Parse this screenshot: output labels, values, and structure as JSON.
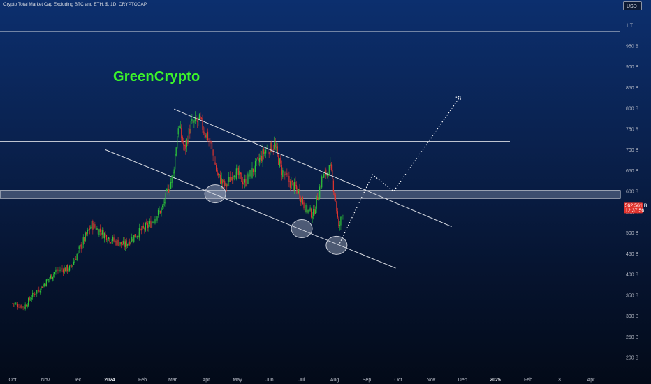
{
  "header": {
    "title": "Crypto Total Market Cap Excluding BTC and ETH, $, 1D, CRYPTOCAP",
    "currency": "USD",
    "watermark": "GreenCrypto"
  },
  "chart_data": {
    "type": "candlestick",
    "title": "Crypto Total Market Cap Excluding BTC and ETH, $, 1D, CRYPTOCAP",
    "ylabel": "",
    "xlabel": "",
    "y_ticks": [
      "1 T",
      "950 B",
      "900 B",
      "850 B",
      "800 B",
      "750 B",
      "700 B",
      "650 B",
      "600 B",
      "550 B",
      "500 B",
      "450 B",
      "400 B",
      "350 B",
      "300 B",
      "250 B",
      "200 B"
    ],
    "x_ticks": [
      "Oct",
      "Nov",
      "Dec",
      "2024",
      "Feb",
      "Mar",
      "Apr",
      "May",
      "Jun",
      "Jul",
      "Aug",
      "Sep",
      "Oct",
      "Nov",
      "Dec",
      "2025",
      "Feb",
      "3",
      "Apr"
    ],
    "last_price_label": "562.561 B",
    "countdown_label": "12:37:56",
    "colors": {
      "up": "#2ec93a",
      "down": "#e0342e",
      "lines": "#d9dce3",
      "price_line": "#e0342e"
    },
    "horizontal_levels": [
      985,
      720,
      583,
      602
    ],
    "zone": [
      583,
      602
    ],
    "price_path": [
      [
        "2023-10-01",
        330
      ],
      [
        "2023-10-12",
        322
      ],
      [
        "2023-10-20",
        350
      ],
      [
        "2023-11-01",
        380
      ],
      [
        "2023-11-12",
        410
      ],
      [
        "2023-11-25",
        415
      ],
      [
        "2023-12-05",
        470
      ],
      [
        "2023-12-15",
        520
      ],
      [
        "2023-12-25",
        500
      ],
      [
        "2024-01-05",
        480
      ],
      [
        "2024-01-15",
        470
      ],
      [
        "2024-01-28",
        500
      ],
      [
        "2024-02-08",
        520
      ],
      [
        "2024-02-20",
        560
      ],
      [
        "2024-03-01",
        640
      ],
      [
        "2024-03-06",
        760
      ],
      [
        "2024-03-12",
        700
      ],
      [
        "2024-03-18",
        760
      ],
      [
        "2024-03-26",
        770
      ],
      [
        "2024-04-05",
        720
      ],
      [
        "2024-04-12",
        640
      ],
      [
        "2024-04-20",
        610
      ],
      [
        "2024-04-28",
        650
      ],
      [
        "2024-05-08",
        620
      ],
      [
        "2024-05-18",
        660
      ],
      [
        "2024-05-28",
        700
      ],
      [
        "2024-06-05",
        710
      ],
      [
        "2024-06-12",
        650
      ],
      [
        "2024-06-20",
        620
      ],
      [
        "2024-06-28",
        600
      ],
      [
        "2024-07-05",
        555
      ],
      [
        "2024-07-12",
        545
      ],
      [
        "2024-07-20",
        630
      ],
      [
        "2024-07-28",
        655
      ],
      [
        "2024-08-02",
        580
      ],
      [
        "2024-08-05",
        510
      ],
      [
        "2024-08-10",
        562
      ]
    ],
    "trendlines": [
      {
        "name": "upper-channel",
        "from": [
          "2024-03-02",
          798
        ],
        "to": [
          "2024-11-20",
          515
        ]
      },
      {
        "name": "lower-channel",
        "from": [
          "2023-12-28",
          700
        ],
        "to": [
          "2024-09-28",
          415
        ]
      },
      {
        "name": "projection",
        "style": "dotted",
        "points": [
          [
            "2024-08-06",
            475
          ],
          [
            "2024-09-06",
            640
          ],
          [
            "2024-09-26",
            600
          ],
          [
            "2024-11-28",
            828
          ]
        ]
      }
    ],
    "highlight_circles": [
      [
        "2024-04-10",
        594
      ],
      [
        "2024-07-01",
        510
      ],
      [
        "2024-08-03",
        470
      ]
    ]
  }
}
